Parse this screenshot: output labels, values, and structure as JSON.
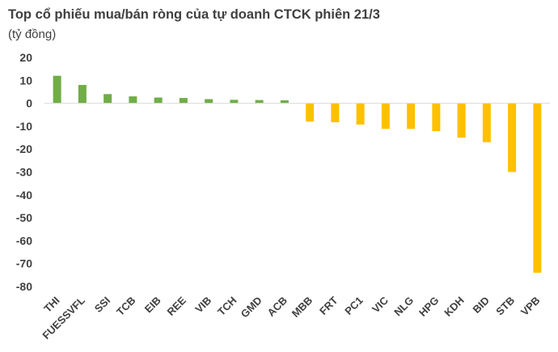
{
  "chart_data": {
    "type": "bar",
    "title": "Top cổ phiếu mua/bán ròng của tự doanh CTCK phiên 21/3",
    "unit": "(tỷ đồng)",
    "xlabel": "",
    "ylabel": "",
    "ylim": [
      -80,
      20
    ],
    "yticks": [
      20,
      10,
      0,
      -10,
      -20,
      -30,
      -40,
      -50,
      -60,
      -70,
      -80
    ],
    "categories": [
      "THI",
      "FUESSVFL",
      "SSI",
      "TCB",
      "EIB",
      "REE",
      "VIB",
      "TCH",
      "GMD",
      "ACB",
      "MBB",
      "FRT",
      "PC1",
      "VIC",
      "NLG",
      "HPG",
      "KDH",
      "BID",
      "STB",
      "VPB"
    ],
    "values": [
      12,
      8,
      4,
      3,
      2.5,
      2.3,
      1.8,
      1.5,
      1.4,
      1.3,
      -8,
      -8.3,
      -9.3,
      -11.2,
      -11.2,
      -12.2,
      -15,
      -17,
      -30,
      -74
    ],
    "positive_color": "#70ad47",
    "negative_color": "#ffc000",
    "grid": false
  }
}
